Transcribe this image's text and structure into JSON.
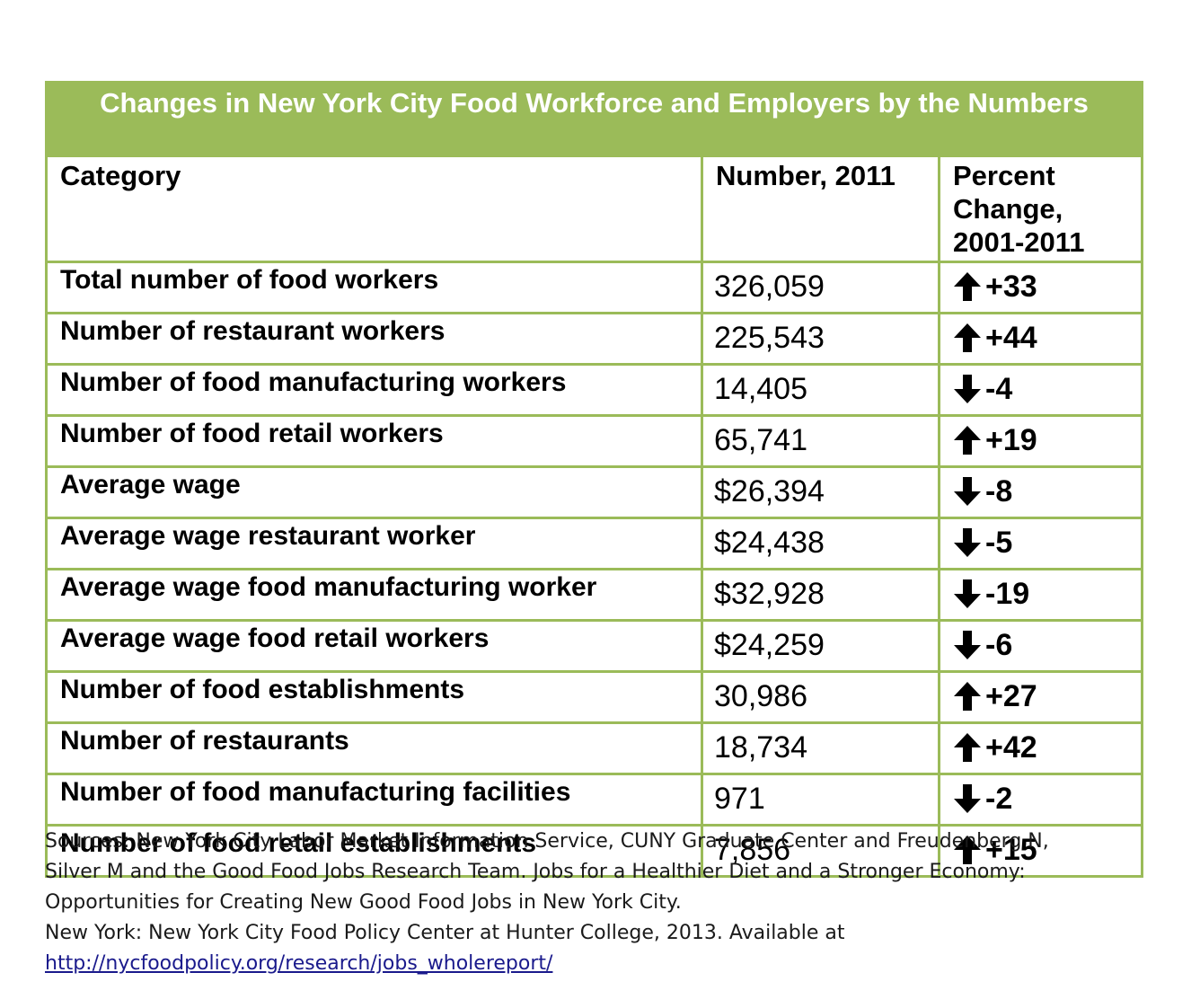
{
  "table": {
    "title": "Changes in New York City Food Workforce and Employers by the Numbers",
    "headers": {
      "category": "Category",
      "number": "Number, 2011",
      "percent": "Percent Change, 2001-2011"
    },
    "rows": [
      {
        "category": "Total number of food workers",
        "number": "326,059",
        "change": "+33",
        "direction": "up"
      },
      {
        "category": "Number of restaurant workers",
        "number": "225,543",
        "change": "+44",
        "direction": "up"
      },
      {
        "category": "Number of food manufacturing workers",
        "number": "14,405",
        "change": "-4",
        "direction": "down"
      },
      {
        "category": "Number of food retail workers",
        "number": "65,741",
        "change": "+19",
        "direction": "up"
      },
      {
        "category": "Average wage",
        "number": "$26,394",
        "change": "-8",
        "direction": "down"
      },
      {
        "category": "Average wage restaurant worker",
        "number": "$24,438",
        "change": "-5",
        "direction": "down"
      },
      {
        "category": "Average wage food manufacturing worker",
        "number": "$32,928",
        "change": "-19",
        "direction": "down"
      },
      {
        "category": "Average wage food retail workers",
        "number": "$24,259",
        "change": "-6",
        "direction": "down"
      },
      {
        "category": "Number of food establishments",
        "number": "30,986",
        "change": "+27",
        "direction": "up"
      },
      {
        "category": "Number of restaurants",
        "number": "18,734",
        "change": "+42",
        "direction": "up"
      },
      {
        "category": "Number of food manufacturing facilities",
        "number": "971",
        "change": "-2",
        "direction": "down"
      },
      {
        "category": "Number of food retail establishments",
        "number": "7,856",
        "change": "+15",
        "direction": "up"
      }
    ]
  },
  "sources": {
    "line1": "Sources: New York City Labor Market Information Service, CUNY Graduate Center and Freudenberg N,",
    "line2": "Silver M and the Good Food Jobs Research Team. Jobs for a Healthier Diet and a Stronger Economy:",
    "line3": "Opportunities for Creating New Good Food Jobs in New York City.",
    "line4": "New York: New York City Food Policy Center at Hunter College, 2013. Available at",
    "link": "http://nycfoodpolicy.org/research/jobs_wholereport/"
  },
  "colors": {
    "header_green": "#9BBB59",
    "link": "#1a1a8c"
  }
}
